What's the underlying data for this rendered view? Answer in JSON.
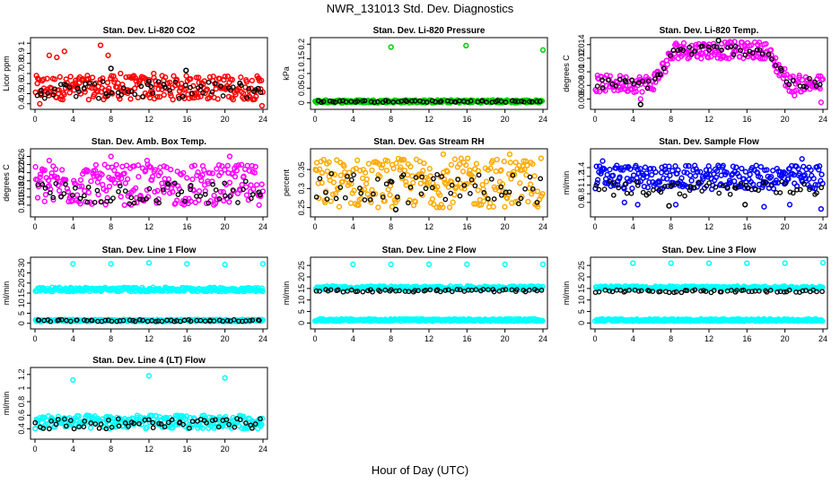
{
  "figure": {
    "title": "NWR_131013  Std. Dev. Diagnostics",
    "xlabel": "Hour of Day (UTC)"
  },
  "chart_data": [
    {
      "type": "scatter",
      "title": "Stan. Dev. Li-820 CO2",
      "ylabel": "Licor ppm",
      "xlim": [
        0,
        24
      ],
      "ylim": [
        0.38,
        1.02
      ],
      "yticks": [
        0.4,
        0.5,
        0.6,
        0.7,
        0.8,
        0.9,
        1.0
      ],
      "xticks": [
        0,
        4,
        8,
        12,
        16,
        20,
        24
      ],
      "color": "#ff0000",
      "series": [
        {
          "color": "#ff0000",
          "band": [
            0.44,
            0.68
          ],
          "points": [
            [
              0.5,
              0.4
            ],
            [
              1.5,
              0.88
            ],
            [
              2.3,
              0.86
            ],
            [
              3.1,
              0.92
            ],
            [
              6.9,
              0.98
            ],
            [
              7.7,
              0.88
            ],
            [
              9.0,
              0.7
            ],
            [
              17.0,
              0.66
            ],
            [
              23.9,
              0.38
            ],
            [
              12.5,
              0.7
            ],
            [
              20.0,
              0.67
            ]
          ]
        },
        {
          "color": "#000000",
          "band": [
            0.45,
            0.62
          ],
          "points": [
            [
              8.0,
              0.75
            ],
            [
              15.9,
              0.73
            ],
            [
              12.0,
              0.62
            ],
            [
              0.6,
              0.5
            ],
            [
              4.5,
              0.55
            ],
            [
              23.5,
              0.55
            ]
          ]
        }
      ]
    },
    {
      "type": "scatter",
      "title": "Stan. Dev. Li-820 Pressure",
      "ylabel": "kPa",
      "xlim": [
        0,
        24
      ],
      "ylim": [
        -0.01,
        0.21
      ],
      "yticks": [
        0.0,
        0.05,
        0.1,
        0.15,
        0.2
      ],
      "xticks": [
        0,
        4,
        8,
        12,
        16,
        20,
        24
      ],
      "color": "#00cc00",
      "series": [
        {
          "color": "#00cc00",
          "band": [
            0.0,
            0.01
          ],
          "points": [
            [
              8.0,
              0.19
            ],
            [
              15.9,
              0.195
            ],
            [
              24.0,
              0.18
            ],
            [
              0.1,
              0.005
            ]
          ]
        },
        {
          "color": "#000000",
          "band": [
            0.002,
            0.008
          ],
          "points": []
        }
      ]
    },
    {
      "type": "scatter",
      "title": "Stan. Dev. Li-820 Temp.",
      "ylabel": "degrees C",
      "xlim": [
        0,
        24
      ],
      "ylim": [
        0.005,
        0.0145
      ],
      "yticks": [
        0.006,
        0.008,
        0.01,
        0.012,
        0.014
      ],
      "xticks": [
        0,
        4,
        8,
        12,
        16,
        20,
        24
      ],
      "color": "#ff00ff",
      "series": [
        {
          "color": "#ff00ff",
          "band": [
            0.007,
            0.0095
          ],
          "profile": "temp",
          "points": [
            [
              4.8,
              0.006
            ],
            [
              23.8,
              0.0055
            ],
            [
              21.0,
              0.0065
            ]
          ]
        },
        {
          "color": "#000000",
          "band": [
            0.0075,
            0.009
          ],
          "profile": "temp",
          "points": [
            [
              4.8,
              0.0052
            ],
            [
              13.0,
              0.0146
            ]
          ]
        }
      ]
    },
    {
      "type": "scatter",
      "title": "Stan. Dev. Amb. Box Temp.",
      "ylabel": "degrees C",
      "xlim": [
        0,
        24
      ],
      "ylim": [
        0.12,
        0.27
      ],
      "yticks": [
        0.14,
        0.16,
        0.18,
        0.2,
        0.22,
        0.24,
        0.26
      ],
      "xticks": [
        0,
        4,
        8,
        12,
        16,
        20,
        24
      ],
      "color": "#ff00ff",
      "series": [
        {
          "color": "#ff00ff",
          "band": [
            0.14,
            0.24
          ],
          "points": [
            [
              1.5,
              0.25
            ],
            [
              8.0,
              0.26
            ],
            [
              20.5,
              0.26
            ],
            [
              11.8,
              0.25
            ]
          ]
        },
        {
          "color": "#000000",
          "band": [
            0.14,
            0.2
          ],
          "points": []
        }
      ]
    },
    {
      "type": "scatter",
      "title": "Stan. Dev. Gas Stream RH",
      "ylabel": "percent",
      "xlim": [
        0,
        24
      ],
      "ylim": [
        0.235,
        0.395
      ],
      "yticks": [
        0.25,
        0.3,
        0.35
      ],
      "xticks": [
        0,
        4,
        8,
        12,
        16,
        20,
        24
      ],
      "color": "#ffaa00",
      "series": [
        {
          "color": "#ffaa00",
          "band": [
            0.25,
            0.38
          ],
          "points": [
            [
              20.5,
              0.39
            ],
            [
              13.5,
              0.39
            ]
          ]
        },
        {
          "color": "#000000",
          "band": [
            0.26,
            0.34
          ],
          "points": [
            [
              8.5,
              0.245
            ]
          ]
        }
      ]
    },
    {
      "type": "scatter",
      "title": "Stan. Dev. Sample Flow",
      "ylabel": "ml/min",
      "xlim": [
        0,
        24
      ],
      "ylim": [
        0.35,
        1.75
      ],
      "yticks": [
        0.6,
        0.8,
        1.0,
        1.2,
        1.4
      ],
      "xticks": [
        0,
        4,
        8,
        12,
        16,
        20,
        24
      ],
      "color": "#0000ff",
      "series": [
        {
          "color": "#0000ff",
          "band": [
            0.9,
            1.45
          ],
          "points": [
            [
              0.8,
              1.55
            ],
            [
              2.3,
              1.45
            ],
            [
              21.8,
              1.6
            ],
            [
              23.8,
              0.45
            ],
            [
              3.1,
              0.6
            ],
            [
              8.5,
              0.55
            ],
            [
              17.8,
              0.5
            ],
            [
              4.5,
              0.55
            ],
            [
              20.5,
              0.55
            ]
          ]
        },
        {
          "color": "#000000",
          "band": [
            0.75,
            1.1
          ],
          "points": [
            [
              7.8,
              0.52
            ],
            [
              15.8,
              0.55
            ]
          ]
        }
      ]
    },
    {
      "type": "scatter",
      "title": "Stan. Dev. Line 1 Flow",
      "ylabel": "ml/min",
      "xlim": [
        0,
        24
      ],
      "ylim": [
        -1,
        31
      ],
      "yticks": [
        0,
        5,
        10,
        15,
        20,
        25,
        30
      ],
      "xticks": [
        0,
        4,
        8,
        12,
        16,
        20,
        24
      ],
      "color": "#00ffff",
      "series": [
        {
          "color": "#00ffff",
          "band": [
            15.8,
            17.8
          ],
          "points": [
            [
              4.0,
              29.5
            ],
            [
              8.0,
              29.5
            ],
            [
              12.0,
              30.0
            ],
            [
              16.0,
              29.5
            ],
            [
              20.0,
              29.2
            ],
            [
              24.0,
              29.5
            ]
          ]
        },
        {
          "color": "#00ffff",
          "band": [
            0.9,
            1.9
          ],
          "points": []
        },
        {
          "color": "#000000",
          "band": [
            0.9,
            1.8
          ],
          "points": []
        }
      ]
    },
    {
      "type": "scatter",
      "title": "Stan. Dev. Line 2 Flow",
      "ylabel": "ml/min",
      "xlim": [
        0,
        24
      ],
      "ylim": [
        -1,
        27
      ],
      "yticks": [
        0,
        5,
        10,
        15,
        20,
        25
      ],
      "xticks": [
        0,
        4,
        8,
        12,
        16,
        20,
        24
      ],
      "color": "#00ffff",
      "series": [
        {
          "color": "#00ffff",
          "band": [
            14.5,
            16.0
          ],
          "points": [
            [
              4.0,
              25.5
            ],
            [
              8.0,
              25.5
            ],
            [
              12.0,
              25.5
            ],
            [
              16.0,
              25.5
            ],
            [
              20.0,
              25.5
            ],
            [
              24.0,
              25.5
            ]
          ]
        },
        {
          "color": "#00ffff",
          "band": [
            0.8,
            1.8
          ],
          "points": []
        },
        {
          "color": "#000000",
          "band": [
            13.5,
            14.6
          ],
          "points": []
        }
      ]
    },
    {
      "type": "scatter",
      "title": "Stan. Dev. Line 3 Flow",
      "ylabel": "ml/min",
      "xlim": [
        0,
        24
      ],
      "ylim": [
        -1,
        27
      ],
      "yticks": [
        0,
        5,
        10,
        15,
        20,
        25
      ],
      "xticks": [
        0,
        4,
        8,
        12,
        16,
        20,
        24
      ],
      "color": "#00ffff",
      "series": [
        {
          "color": "#00ffff",
          "band": [
            14.8,
            16.0
          ],
          "points": [
            [
              4.0,
              26.0
            ],
            [
              8.0,
              26.0
            ],
            [
              12.0,
              26.0
            ],
            [
              16.0,
              26.0
            ],
            [
              20.0,
              26.0
            ],
            [
              24.0,
              26.2
            ]
          ]
        },
        {
          "color": "#00ffff",
          "band": [
            0.8,
            1.8
          ],
          "points": []
        },
        {
          "color": "#000000",
          "band": [
            13.2,
            14.4
          ],
          "points": []
        }
      ]
    },
    {
      "type": "scatter",
      "title": "Stan. Dev. Line 4 (LT) Flow",
      "ylabel": "ml/min",
      "xlim": [
        0,
        24
      ],
      "ylim": [
        0.3,
        1.25
      ],
      "yticks": [
        0.4,
        0.6,
        0.8,
        1.0,
        1.2
      ],
      "xticks": [
        0,
        4,
        8,
        12,
        16,
        20,
        24
      ],
      "color": "#00ffff",
      "series": [
        {
          "color": "#00ffff",
          "band": [
            0.4,
            0.6
          ],
          "points": [
            [
              4.0,
              1.12
            ],
            [
              12.0,
              1.18
            ],
            [
              20.0,
              1.15
            ]
          ]
        },
        {
          "color": "#000000",
          "band": [
            0.4,
            0.55
          ],
          "points": []
        }
      ]
    }
  ]
}
